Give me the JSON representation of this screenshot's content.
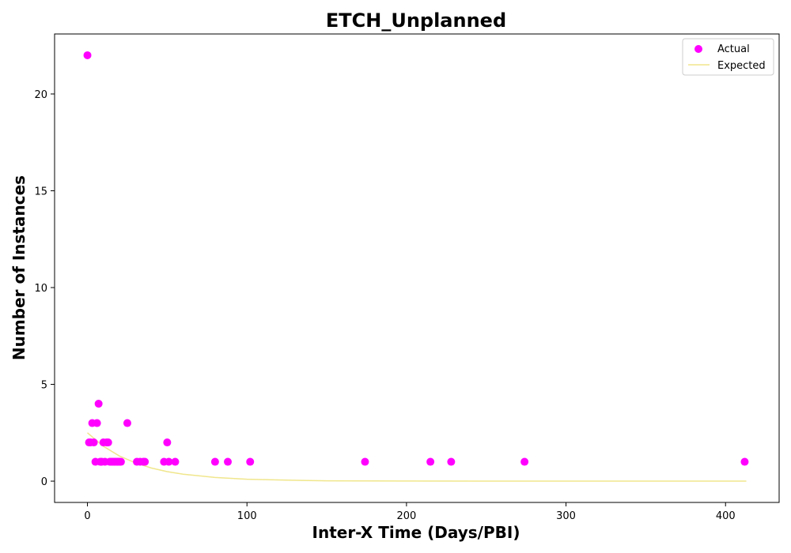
{
  "chart_data": {
    "type": "scatter",
    "title": "ETCH_Unplanned",
    "xlabel": "Inter-X Time (Days/PBI)",
    "ylabel": "Number of Instances",
    "xlim": [
      -20.6,
      433.6
    ],
    "ylim": [
      -1.1,
      23.1
    ],
    "xticks": [
      0,
      100,
      200,
      300,
      400
    ],
    "yticks": [
      0,
      5,
      10,
      15,
      20
    ],
    "grid": false,
    "legend_position": "top-right",
    "series": [
      {
        "name": "Actual",
        "kind": "scatter",
        "color": "#ff00ff",
        "x": [
          0,
          1,
          2,
          3,
          4,
          5,
          6,
          7,
          8,
          9,
          10,
          11,
          12,
          13,
          14,
          15,
          16,
          17,
          18,
          19,
          20,
          21,
          25,
          31,
          33,
          35,
          36,
          48,
          50,
          51,
          55,
          80,
          88,
          102,
          174,
          215,
          228,
          274,
          412
        ],
        "y": [
          22,
          2,
          2,
          3,
          2,
          1,
          3,
          4,
          1,
          1,
          2,
          1,
          2,
          2,
          1,
          1,
          1,
          1,
          1,
          1,
          1,
          1,
          3,
          1,
          1,
          1,
          1,
          1,
          2,
          1,
          1,
          1,
          1,
          1,
          1,
          1,
          1,
          1,
          1
        ]
      },
      {
        "name": "Expected",
        "kind": "line",
        "color": "#f0e68c",
        "x": [
          0,
          10,
          20,
          30,
          40,
          50,
          60,
          80,
          100,
          125,
          150,
          200,
          250,
          300,
          350,
          413
        ],
        "y": [
          2.5,
          1.8,
          1.3,
          0.95,
          0.68,
          0.49,
          0.36,
          0.19,
          0.1,
          0.05,
          0.02,
          0.005,
          0.001,
          0,
          0,
          0
        ]
      }
    ]
  }
}
